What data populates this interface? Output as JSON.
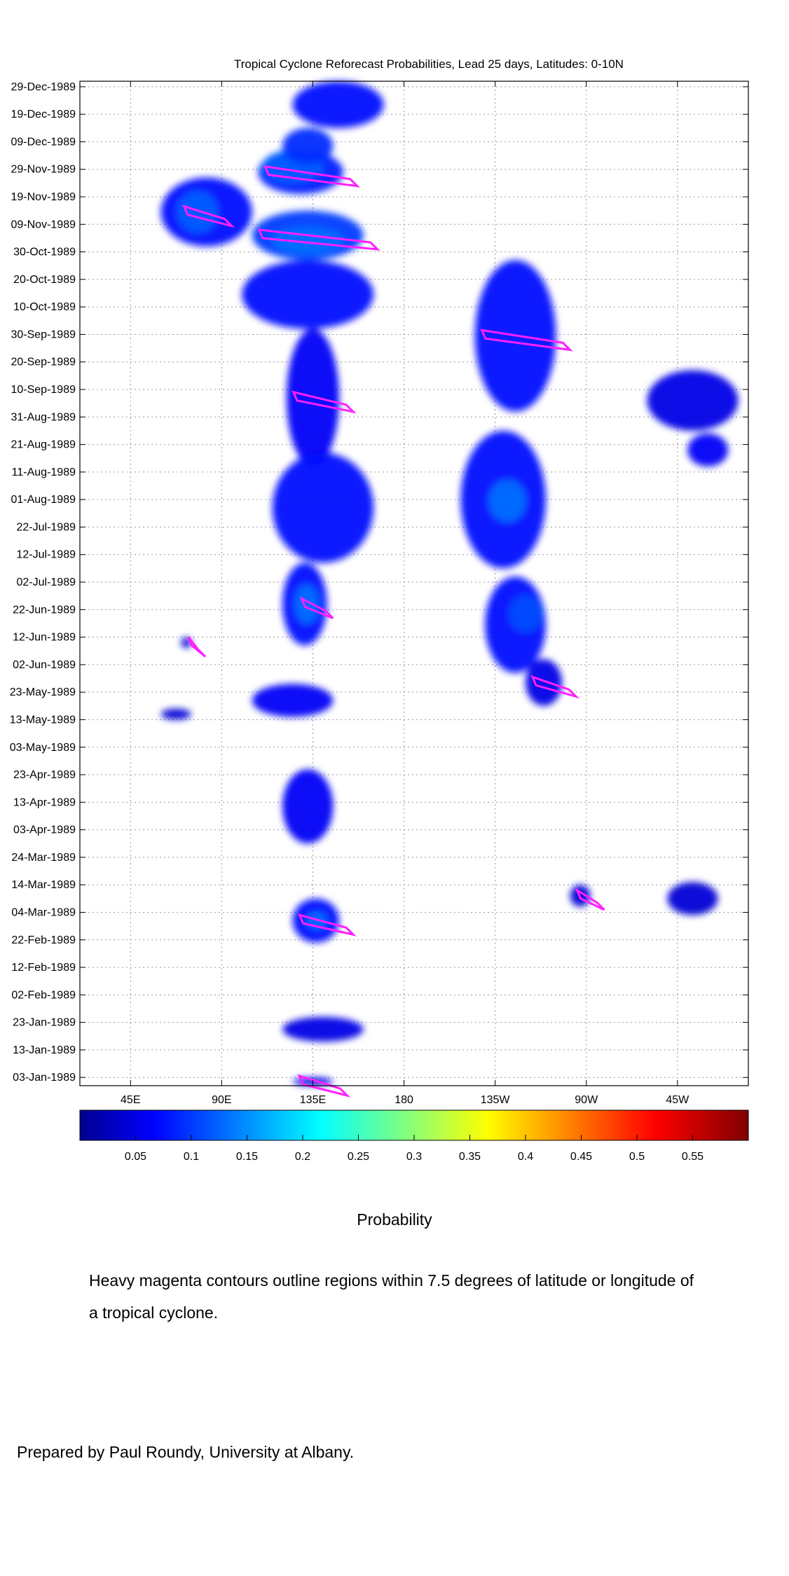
{
  "chart_data": {
    "type": "heatmap",
    "title": "Tropical Cyclone Reforecast Probabilities, Lead 25 days, Latitudes: 0-10N",
    "x_ticks": [
      "45E",
      "90E",
      "135E",
      "180",
      "135W",
      "90W",
      "45W"
    ],
    "x_tick_lon": [
      45,
      90,
      135,
      180,
      225,
      270,
      315
    ],
    "xlim": [
      20,
      350
    ],
    "y_ticks": [
      "29-Dec-1989",
      "19-Dec-1989",
      "09-Dec-1989",
      "29-Nov-1989",
      "19-Nov-1989",
      "09-Nov-1989",
      "30-Oct-1989",
      "20-Oct-1989",
      "10-Oct-1989",
      "30-Sep-1989",
      "20-Sep-1989",
      "10-Sep-1989",
      "31-Aug-1989",
      "21-Aug-1989",
      "11-Aug-1989",
      "01-Aug-1989",
      "22-Jul-1989",
      "12-Jul-1989",
      "02-Jul-1989",
      "22-Jun-1989",
      "12-Jun-1989",
      "02-Jun-1989",
      "23-May-1989",
      "13-May-1989",
      "03-May-1989",
      "23-Apr-1989",
      "13-Apr-1989",
      "03-Apr-1989",
      "24-Mar-1989",
      "14-Mar-1989",
      "04-Mar-1989",
      "22-Feb-1989",
      "12-Feb-1989",
      "02-Feb-1989",
      "23-Jan-1989",
      "13-Jan-1989",
      "03-Jan-1989"
    ],
    "y_tick_day": [
      363,
      353,
      343,
      333,
      323,
      313,
      303,
      293,
      283,
      273,
      263,
      253,
      243,
      233,
      223,
      213,
      203,
      193,
      183,
      173,
      163,
      153,
      143,
      133,
      123,
      113,
      103,
      93,
      83,
      73,
      63,
      53,
      43,
      33,
      23,
      13,
      3
    ],
    "ylim": [
      0,
      365
    ],
    "grid": true,
    "colorbar": {
      "ticks": [
        "0.05",
        "0.1",
        "0.15",
        "0.2",
        "0.25",
        "0.3",
        "0.35",
        "0.4",
        "0.45",
        "0.5",
        "0.55"
      ],
      "tick_values": [
        0.05,
        0.1,
        0.15,
        0.2,
        0.25,
        0.3,
        0.35,
        0.4,
        0.45,
        0.5,
        0.55
      ],
      "range": [
        0,
        0.6
      ],
      "label": "Probability",
      "colormap": "jet"
    },
    "probability_regions": [
      {
        "lon": [
          108,
          150
        ],
        "day": [
          324,
          340
        ],
        "p": 0.09
      },
      {
        "lon": [
          110,
          140
        ],
        "day": [
          328,
          340
        ],
        "p": 0.13
      },
      {
        "lon": [
          120,
          145
        ],
        "day": [
          335,
          348
        ],
        "p": 0.1
      },
      {
        "lon": [
          105,
          160
        ],
        "day": [
          300,
          318
        ],
        "p": 0.11
      },
      {
        "lon": [
          115,
          150
        ],
        "day": [
          302,
          312
        ],
        "p": 0.14
      },
      {
        "lon": [
          60,
          105
        ],
        "day": [
          305,
          330
        ],
        "p": 0.08
      },
      {
        "lon": [
          68,
          88
        ],
        "day": [
          310,
          325
        ],
        "p": 0.13
      },
      {
        "lon": [
          125,
          170
        ],
        "day": [
          348,
          365
        ],
        "p": 0.08
      },
      {
        "lon": [
          100,
          165
        ],
        "day": [
          275,
          300
        ],
        "p": 0.08
      },
      {
        "lon": [
          122,
          148
        ],
        "day": [
          225,
          275
        ],
        "p": 0.07
      },
      {
        "lon": [
          115,
          165
        ],
        "day": [
          190,
          230
        ],
        "p": 0.08
      },
      {
        "lon": [
          120,
          142
        ],
        "day": [
          160,
          190
        ],
        "p": 0.08
      },
      {
        "lon": [
          126,
          138
        ],
        "day": [
          168,
          182
        ],
        "p": 0.14
      },
      {
        "lon": [
          105,
          145
        ],
        "day": [
          134,
          146
        ],
        "p": 0.07
      },
      {
        "lon": [
          120,
          145
        ],
        "day": [
          88,
          115
        ],
        "p": 0.07
      },
      {
        "lon": [
          125,
          148
        ],
        "day": [
          52,
          68
        ],
        "p": 0.08
      },
      {
        "lon": [
          132,
          142
        ],
        "day": [
          57,
          63
        ],
        "p": 0.14
      },
      {
        "lon": [
          120,
          160
        ],
        "day": [
          16,
          25
        ],
        "p": 0.06
      },
      {
        "lon": [
          125,
          145
        ],
        "day": [
          0,
          3
        ],
        "p": 0.06
      },
      {
        "lon": [
          208,
          250
        ],
        "day": [
          188,
          238
        ],
        "p": 0.08
      },
      {
        "lon": [
          222,
          240
        ],
        "day": [
          205,
          220
        ],
        "p": 0.14
      },
      {
        "lon": [
          215,
          255
        ],
        "day": [
          245,
          300
        ],
        "p": 0.08
      },
      {
        "lon": [
          220,
          250
        ],
        "day": [
          150,
          185
        ],
        "p": 0.08
      },
      {
        "lon": [
          232,
          248
        ],
        "day": [
          165,
          178
        ],
        "p": 0.12
      },
      {
        "lon": [
          240,
          258
        ],
        "day": [
          138,
          155
        ],
        "p": 0.06
      },
      {
        "lon": [
          300,
          345
        ],
        "day": [
          238,
          260
        ],
        "p": 0.06
      },
      {
        "lon": [
          320,
          340
        ],
        "day": [
          225,
          237
        ],
        "p": 0.07
      },
      {
        "lon": [
          70,
          75
        ],
        "day": [
          159,
          163
        ],
        "p": 0.05
      },
      {
        "lon": [
          60,
          75
        ],
        "day": [
          133,
          137
        ],
        "p": 0.05
      },
      {
        "lon": [
          310,
          335
        ],
        "day": [
          62,
          74
        ],
        "p": 0.05
      },
      {
        "lon": [
          262,
          272
        ],
        "day": [
          65,
          73
        ],
        "p": 0.05
      }
    ],
    "contour_note": "Heavy magenta contours outline regions within 7.5 degrees of latitude or longitude of a tropical cyclone.",
    "contour_color": "#ff20ff"
  },
  "footer": {
    "credit": "Prepared by Paul Roundy, University at Albany."
  }
}
